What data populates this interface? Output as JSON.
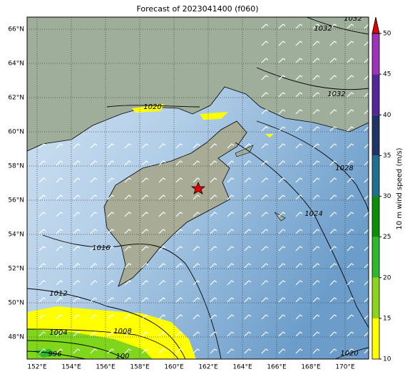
{
  "title": "Forecast of 2023041400 (f060)",
  "map": {
    "lon_ticks": [
      {
        "value": 152,
        "label": "152°E"
      },
      {
        "value": 154,
        "label": "154°E"
      },
      {
        "value": 156,
        "label": "156°E"
      },
      {
        "value": 158,
        "label": "158°E"
      },
      {
        "value": 160,
        "label": "160°E"
      },
      {
        "value": 162,
        "label": "162°E"
      },
      {
        "value": 164,
        "label": "164°E"
      },
      {
        "value": 166,
        "label": "166°E"
      },
      {
        "value": 168,
        "label": "168°E"
      },
      {
        "value": 170,
        "label": "170°E"
      }
    ],
    "lat_ticks": [
      {
        "value": 66,
        "label": "66°N"
      },
      {
        "value": 64,
        "label": "64°N"
      },
      {
        "value": 62,
        "label": "62°N"
      },
      {
        "value": 60,
        "label": "60°N"
      },
      {
        "value": 58,
        "label": "58°N"
      },
      {
        "value": 56,
        "label": "56°N"
      },
      {
        "value": 54,
        "label": "54°N"
      },
      {
        "value": 52,
        "label": "52°N"
      },
      {
        "value": 50,
        "label": "50°N"
      },
      {
        "value": 48,
        "label": "48°N"
      }
    ],
    "isobar_labels": [
      "1032",
      "1032",
      "1032",
      "1020",
      "1028",
      "1024",
      "1016",
      "1012",
      "1004",
      "1008",
      "996",
      "100",
      "1020"
    ]
  },
  "colorbar": {
    "label": "10 m wind speed (m/s)",
    "ticks": [
      10,
      15,
      20,
      25,
      30,
      35,
      40,
      45,
      50
    ],
    "colors": [
      "#ffff00",
      "#8fd41c",
      "#2eb82e",
      "#0b8f0b",
      "#226e8e",
      "#1e3566",
      "#55259a",
      "#9b34b8"
    ],
    "extend_color": "#e00000"
  }
}
